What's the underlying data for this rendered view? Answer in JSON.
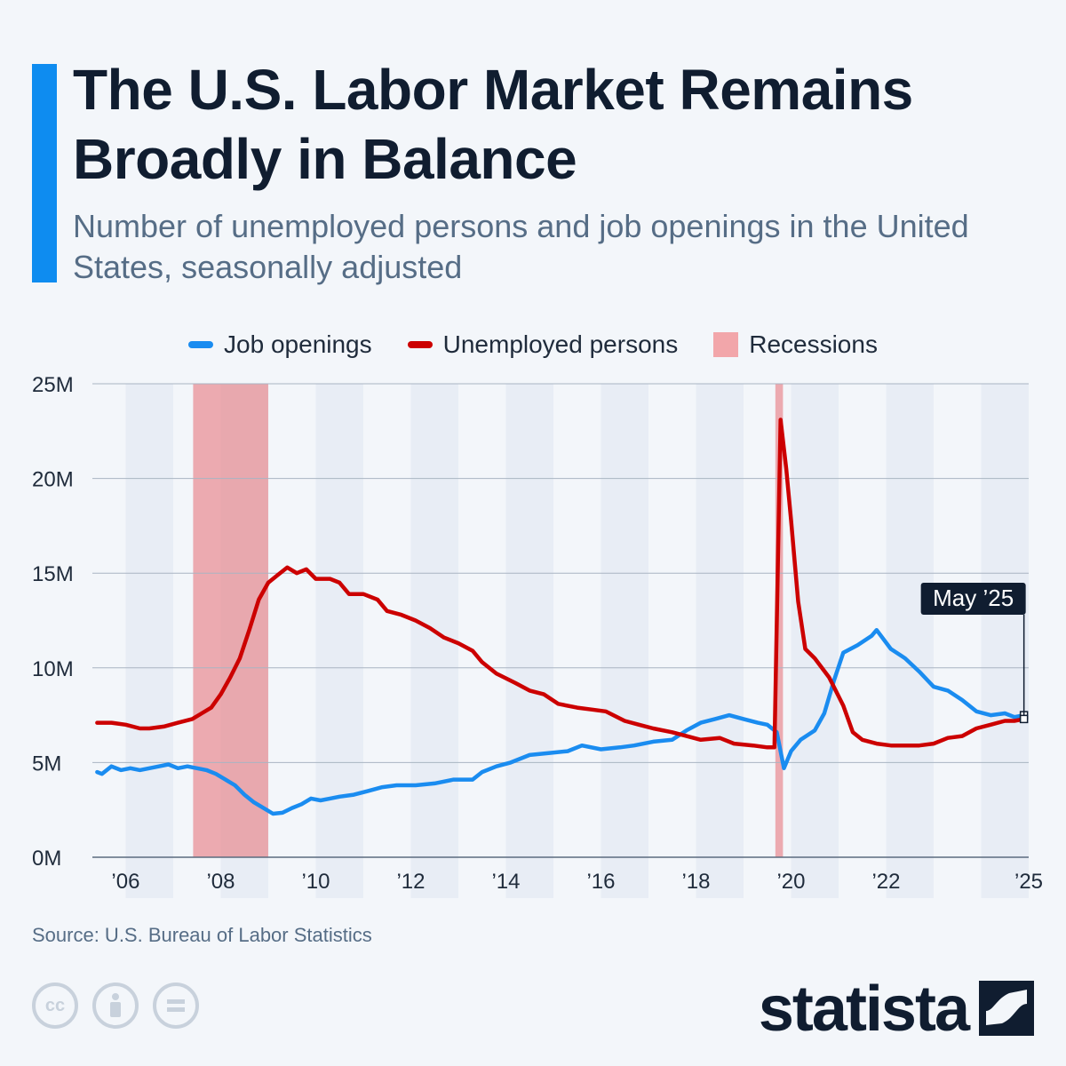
{
  "header": {
    "title": "The U.S. Labor Market Remains Broadly in Balance",
    "subtitle": "Number of unemployed persons and job openings in the United States, seasonally adjusted"
  },
  "legend": {
    "items": [
      {
        "label": "Job openings",
        "color": "#1a8cf0",
        "kind": "line"
      },
      {
        "label": "Unemployed persons",
        "color": "#cc0000",
        "kind": "line"
      },
      {
        "label": "Recessions",
        "color": "#f2a6aa",
        "kind": "box"
      }
    ]
  },
  "footer": {
    "source": "Source: U.S. Bureau of Labor Statistics",
    "brand": "statista",
    "license_icons": [
      "cc-icon",
      "attribution-icon",
      "no-derivatives-icon"
    ]
  },
  "chart_data": {
    "type": "line",
    "title": "The U.S. Labor Market Remains Broadly in Balance",
    "subtitle": "Number of unemployed persons and job openings in the United States, seasonally adjusted",
    "x_unit": "year",
    "xlim": [
      2005.8,
      2025.5
    ],
    "ylim": [
      0,
      25
    ],
    "y_unit": "millions",
    "yticks": [
      0,
      5,
      10,
      15,
      20,
      25
    ],
    "ytick_labels": [
      "0M",
      "5M",
      "10M",
      "15M",
      "20M",
      "25M"
    ],
    "xticks": [
      2006,
      2008,
      2010,
      2012,
      2014,
      2016,
      2018,
      2020,
      2022,
      2025
    ],
    "xtick_labels": [
      "’06",
      "’08",
      "’10",
      "’12",
      "’14",
      "’16",
      "’18",
      "’20",
      "’22",
      "’25"
    ],
    "grid": true,
    "legend_position": "top-center",
    "recessions": [
      [
        2007.92,
        2009.5
      ],
      [
        2020.17,
        2020.33
      ]
    ],
    "annotation": {
      "label": "May ’25",
      "x": 2025.4
    },
    "series": [
      {
        "name": "Job openings",
        "color": "#1a8cf0",
        "points": [
          [
            2005.9,
            4.5
          ],
          [
            2006.0,
            4.4
          ],
          [
            2006.2,
            4.8
          ],
          [
            2006.4,
            4.6
          ],
          [
            2006.6,
            4.7
          ],
          [
            2006.8,
            4.6
          ],
          [
            2007.0,
            4.7
          ],
          [
            2007.2,
            4.8
          ],
          [
            2007.4,
            4.9
          ],
          [
            2007.6,
            4.7
          ],
          [
            2007.8,
            4.8
          ],
          [
            2008.0,
            4.7
          ],
          [
            2008.2,
            4.6
          ],
          [
            2008.4,
            4.4
          ],
          [
            2008.6,
            4.1
          ],
          [
            2008.8,
            3.8
          ],
          [
            2009.0,
            3.3
          ],
          [
            2009.2,
            2.9
          ],
          [
            2009.4,
            2.6
          ],
          [
            2009.6,
            2.3
          ],
          [
            2009.8,
            2.35
          ],
          [
            2010.0,
            2.6
          ],
          [
            2010.2,
            2.8
          ],
          [
            2010.4,
            3.1
          ],
          [
            2010.6,
            3.0
          ],
          [
            2010.8,
            3.1
          ],
          [
            2011.0,
            3.2
          ],
          [
            2011.3,
            3.3
          ],
          [
            2011.6,
            3.5
          ],
          [
            2011.9,
            3.7
          ],
          [
            2012.2,
            3.8
          ],
          [
            2012.6,
            3.8
          ],
          [
            2013.0,
            3.9
          ],
          [
            2013.4,
            4.1
          ],
          [
            2013.8,
            4.1
          ],
          [
            2014.0,
            4.5
          ],
          [
            2014.3,
            4.8
          ],
          [
            2014.6,
            5.0
          ],
          [
            2015.0,
            5.4
          ],
          [
            2015.4,
            5.5
          ],
          [
            2015.8,
            5.6
          ],
          [
            2016.1,
            5.9
          ],
          [
            2016.5,
            5.7
          ],
          [
            2016.9,
            5.8
          ],
          [
            2017.2,
            5.9
          ],
          [
            2017.6,
            6.1
          ],
          [
            2018.0,
            6.2
          ],
          [
            2018.3,
            6.7
          ],
          [
            2018.6,
            7.1
          ],
          [
            2018.9,
            7.3
          ],
          [
            2019.2,
            7.5
          ],
          [
            2019.5,
            7.3
          ],
          [
            2019.8,
            7.1
          ],
          [
            2020.0,
            7.0
          ],
          [
            2020.2,
            6.6
          ],
          [
            2020.35,
            4.7
          ],
          [
            2020.5,
            5.6
          ],
          [
            2020.7,
            6.2
          ],
          [
            2021.0,
            6.7
          ],
          [
            2021.2,
            7.6
          ],
          [
            2021.4,
            9.3
          ],
          [
            2021.6,
            10.8
          ],
          [
            2021.9,
            11.2
          ],
          [
            2022.2,
            11.7
          ],
          [
            2022.3,
            12.0
          ],
          [
            2022.6,
            11.0
          ],
          [
            2022.9,
            10.5
          ],
          [
            2023.2,
            9.8
          ],
          [
            2023.5,
            9.0
          ],
          [
            2023.8,
            8.8
          ],
          [
            2024.1,
            8.3
          ],
          [
            2024.4,
            7.7
          ],
          [
            2024.7,
            7.5
          ],
          [
            2025.0,
            7.6
          ],
          [
            2025.2,
            7.4
          ],
          [
            2025.4,
            7.5
          ]
        ]
      },
      {
        "name": "Unemployed persons",
        "color": "#cc0000",
        "points": [
          [
            2005.9,
            7.1
          ],
          [
            2006.2,
            7.1
          ],
          [
            2006.5,
            7.0
          ],
          [
            2006.8,
            6.8
          ],
          [
            2007.0,
            6.8
          ],
          [
            2007.3,
            6.9
          ],
          [
            2007.6,
            7.1
          ],
          [
            2007.9,
            7.3
          ],
          [
            2008.1,
            7.6
          ],
          [
            2008.3,
            7.9
          ],
          [
            2008.5,
            8.6
          ],
          [
            2008.7,
            9.5
          ],
          [
            2008.9,
            10.5
          ],
          [
            2009.1,
            12.0
          ],
          [
            2009.3,
            13.6
          ],
          [
            2009.5,
            14.5
          ],
          [
            2009.7,
            14.9
          ],
          [
            2009.9,
            15.3
          ],
          [
            2010.1,
            15.0
          ],
          [
            2010.3,
            15.2
          ],
          [
            2010.5,
            14.7
          ],
          [
            2010.8,
            14.7
          ],
          [
            2011.0,
            14.5
          ],
          [
            2011.2,
            13.9
          ],
          [
            2011.5,
            13.9
          ],
          [
            2011.8,
            13.6
          ],
          [
            2012.0,
            13.0
          ],
          [
            2012.3,
            12.8
          ],
          [
            2012.6,
            12.5
          ],
          [
            2012.9,
            12.1
          ],
          [
            2013.2,
            11.6
          ],
          [
            2013.5,
            11.3
          ],
          [
            2013.8,
            10.9
          ],
          [
            2014.0,
            10.3
          ],
          [
            2014.3,
            9.7
          ],
          [
            2014.7,
            9.2
          ],
          [
            2015.0,
            8.8
          ],
          [
            2015.3,
            8.6
          ],
          [
            2015.6,
            8.1
          ],
          [
            2016.0,
            7.9
          ],
          [
            2016.3,
            7.8
          ],
          [
            2016.6,
            7.7
          ],
          [
            2017.0,
            7.2
          ],
          [
            2017.3,
            7.0
          ],
          [
            2017.6,
            6.8
          ],
          [
            2018.0,
            6.6
          ],
          [
            2018.3,
            6.4
          ],
          [
            2018.6,
            6.2
          ],
          [
            2019.0,
            6.3
          ],
          [
            2019.3,
            6.0
          ],
          [
            2019.7,
            5.9
          ],
          [
            2020.0,
            5.8
          ],
          [
            2020.15,
            5.8
          ],
          [
            2020.28,
            23.1
          ],
          [
            2020.4,
            20.5
          ],
          [
            2020.5,
            17.8
          ],
          [
            2020.65,
            13.5
          ],
          [
            2020.8,
            11.0
          ],
          [
            2021.0,
            10.5
          ],
          [
            2021.3,
            9.5
          ],
          [
            2021.6,
            8.0
          ],
          [
            2021.8,
            6.6
          ],
          [
            2022.0,
            6.2
          ],
          [
            2022.3,
            6.0
          ],
          [
            2022.6,
            5.9
          ],
          [
            2022.9,
            5.9
          ],
          [
            2023.2,
            5.9
          ],
          [
            2023.5,
            6.0
          ],
          [
            2023.8,
            6.3
          ],
          [
            2024.1,
            6.4
          ],
          [
            2024.4,
            6.8
          ],
          [
            2024.7,
            7.0
          ],
          [
            2025.0,
            7.2
          ],
          [
            2025.2,
            7.2
          ],
          [
            2025.4,
            7.3
          ]
        ]
      }
    ]
  }
}
